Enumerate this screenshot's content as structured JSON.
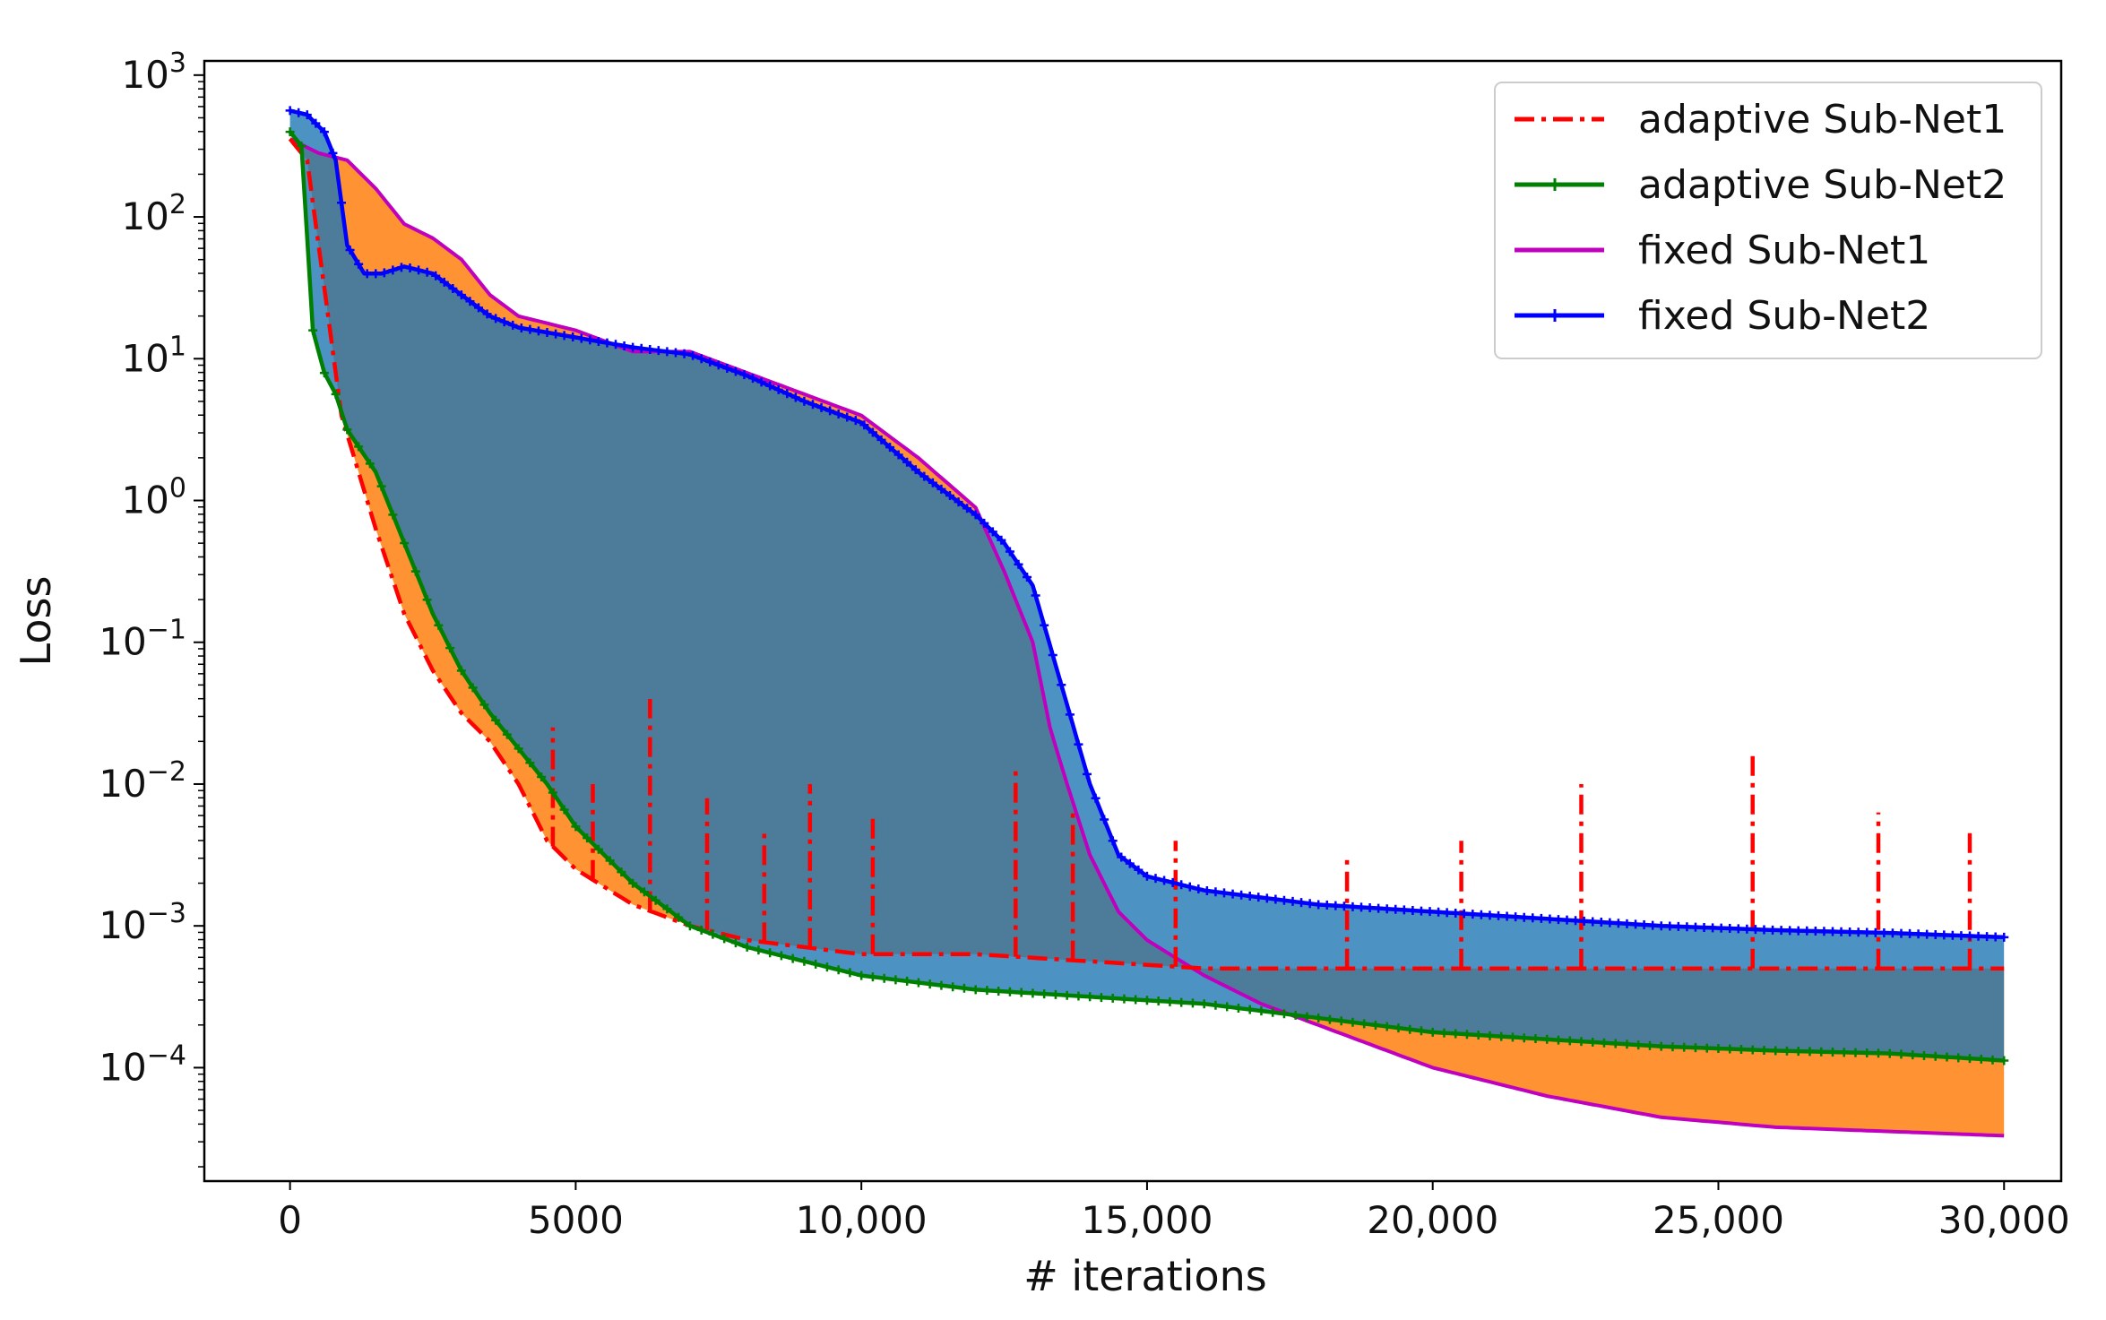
{
  "chart_data": {
    "type": "line",
    "title": "",
    "xlabel": "# iterations",
    "ylabel": "Loss",
    "xlim": [
      -1500,
      31000
    ],
    "ylim_log10": [
      -4.8,
      3.1
    ],
    "yscale": "log",
    "x_ticks": [
      0,
      5000,
      10000,
      15000,
      20000,
      25000,
      30000
    ],
    "x_tick_labels": [
      "0",
      "5000",
      "10,000",
      "15,000",
      "20,000",
      "25,000",
      "30,000"
    ],
    "y_ticks_log10": [
      3,
      2,
      1,
      0,
      -1,
      -2,
      -3,
      -4
    ],
    "y_tick_labels": [
      {
        "base": "10",
        "exp": "3"
      },
      {
        "base": "10",
        "exp": "2"
      },
      {
        "base": "10",
        "exp": "1"
      },
      {
        "base": "10",
        "exp": "0"
      },
      {
        "base": "10",
        "exp": "−1"
      },
      {
        "base": "10",
        "exp": "−2"
      },
      {
        "base": "10",
        "exp": "−3"
      },
      {
        "base": "10",
        "exp": "−4"
      }
    ],
    "legend_position": "top-right",
    "fills": [
      {
        "between": [
          "fixed Sub-Net1",
          "adaptive Sub-Net1"
        ],
        "color": "#ff7f0e",
        "note": "orange band"
      },
      {
        "between": [
          "fixed Sub-Net2",
          "adaptive Sub-Net2"
        ],
        "color": "#1f77b4",
        "note": "blue band"
      }
    ],
    "series": [
      {
        "name": "adaptive Sub-Net1",
        "color": "#ff0000",
        "style": "dashdot",
        "x": [
          0,
          300,
          500,
          700,
          900,
          1200,
          1500,
          2000,
          2500,
          3000,
          3500,
          4000,
          4500,
          5000,
          6000,
          7000,
          8000,
          9000,
          10000,
          12000,
          14000,
          16000,
          18000,
          20000,
          22000,
          24000,
          26000,
          28000,
          30000
        ],
        "log10_values": [
          2.55,
          2.4,
          1.8,
          1.2,
          0.6,
          0.2,
          -0.2,
          -0.8,
          -1.2,
          -1.5,
          -1.7,
          -2.0,
          -2.4,
          -2.6,
          -2.85,
          -3.0,
          -3.1,
          -3.15,
          -3.2,
          -3.2,
          -3.25,
          -3.3,
          -3.3,
          -3.3,
          -3.3,
          -3.3,
          -3.3,
          -3.3,
          -3.3
        ],
        "spikes": [
          {
            "x": 4600,
            "log10": -1.6
          },
          {
            "x": 5300,
            "log10": -2.0
          },
          {
            "x": 6300,
            "log10": -1.4
          },
          {
            "x": 7300,
            "log10": -2.1
          },
          {
            "x": 8300,
            "log10": -2.3
          },
          {
            "x": 9100,
            "log10": -2.0
          },
          {
            "x": 10200,
            "log10": -2.2
          },
          {
            "x": 12700,
            "log10": -1.9
          },
          {
            "x": 13700,
            "log10": -2.2
          },
          {
            "x": 15500,
            "log10": -2.4
          },
          {
            "x": 18500,
            "log10": -2.5
          },
          {
            "x": 20500,
            "log10": -2.4
          },
          {
            "x": 22600,
            "log10": -2.0
          },
          {
            "x": 25600,
            "log10": -1.8
          },
          {
            "x": 27800,
            "log10": -2.2
          },
          {
            "x": 29400,
            "log10": -2.3
          }
        ]
      },
      {
        "name": "adaptive Sub-Net2",
        "color": "#008000",
        "style": "solid-plus-markers",
        "x": [
          0,
          200,
          400,
          600,
          800,
          1000,
          1500,
          2000,
          2500,
          3000,
          3500,
          4000,
          4500,
          5000,
          6000,
          7000,
          8000,
          9000,
          10000,
          12000,
          14000,
          16000,
          18000,
          20000,
          22000,
          24000,
          26000,
          28000,
          30000
        ],
        "log10_values": [
          2.6,
          2.5,
          1.2,
          0.9,
          0.75,
          0.5,
          0.2,
          -0.3,
          -0.8,
          -1.2,
          -1.5,
          -1.75,
          -2.0,
          -2.3,
          -2.7,
          -3.0,
          -3.15,
          -3.25,
          -3.35,
          -3.45,
          -3.5,
          -3.55,
          -3.65,
          -3.75,
          -3.8,
          -3.85,
          -3.88,
          -3.9,
          -3.95
        ]
      },
      {
        "name": "fixed Sub-Net1",
        "color": "#bf00bf",
        "style": "solid",
        "x": [
          0,
          500,
          1000,
          1500,
          2000,
          2500,
          3000,
          3500,
          4000,
          5000,
          6000,
          7000,
          8000,
          9000,
          10000,
          11000,
          12000,
          12500,
          13000,
          13300,
          13600,
          14000,
          14500,
          15000,
          16000,
          17000,
          18000,
          19000,
          20000,
          22000,
          24000,
          26000,
          28000,
          30000
        ],
        "log10_values": [
          2.55,
          2.45,
          2.4,
          2.2,
          1.95,
          1.85,
          1.7,
          1.45,
          1.3,
          1.2,
          1.05,
          1.05,
          0.9,
          0.75,
          0.6,
          0.3,
          -0.05,
          -0.5,
          -1.0,
          -1.6,
          -2.0,
          -2.5,
          -2.9,
          -3.1,
          -3.35,
          -3.55,
          -3.7,
          -3.85,
          -4.0,
          -4.2,
          -4.35,
          -4.42,
          -4.45,
          -4.48
        ]
      },
      {
        "name": "fixed Sub-Net2",
        "color": "#0000ff",
        "style": "solid-star-markers",
        "x": [
          0,
          300,
          600,
          800,
          1000,
          1300,
          1600,
          2000,
          2500,
          3000,
          3500,
          4000,
          5000,
          6000,
          7000,
          8000,
          9000,
          10000,
          11000,
          12000,
          12500,
          13000,
          13500,
          14000,
          14500,
          15000,
          16000,
          18000,
          20000,
          22000,
          24000,
          26000,
          28000,
          30000
        ],
        "log10_values": [
          2.75,
          2.72,
          2.6,
          2.4,
          1.8,
          1.6,
          1.6,
          1.65,
          1.6,
          1.45,
          1.3,
          1.22,
          1.15,
          1.08,
          1.03,
          0.88,
          0.7,
          0.55,
          0.2,
          -0.1,
          -0.3,
          -0.6,
          -1.3,
          -2.0,
          -2.5,
          -2.65,
          -2.75,
          -2.85,
          -2.9,
          -2.95,
          -3.0,
          -3.03,
          -3.05,
          -3.08
        ]
      }
    ]
  }
}
